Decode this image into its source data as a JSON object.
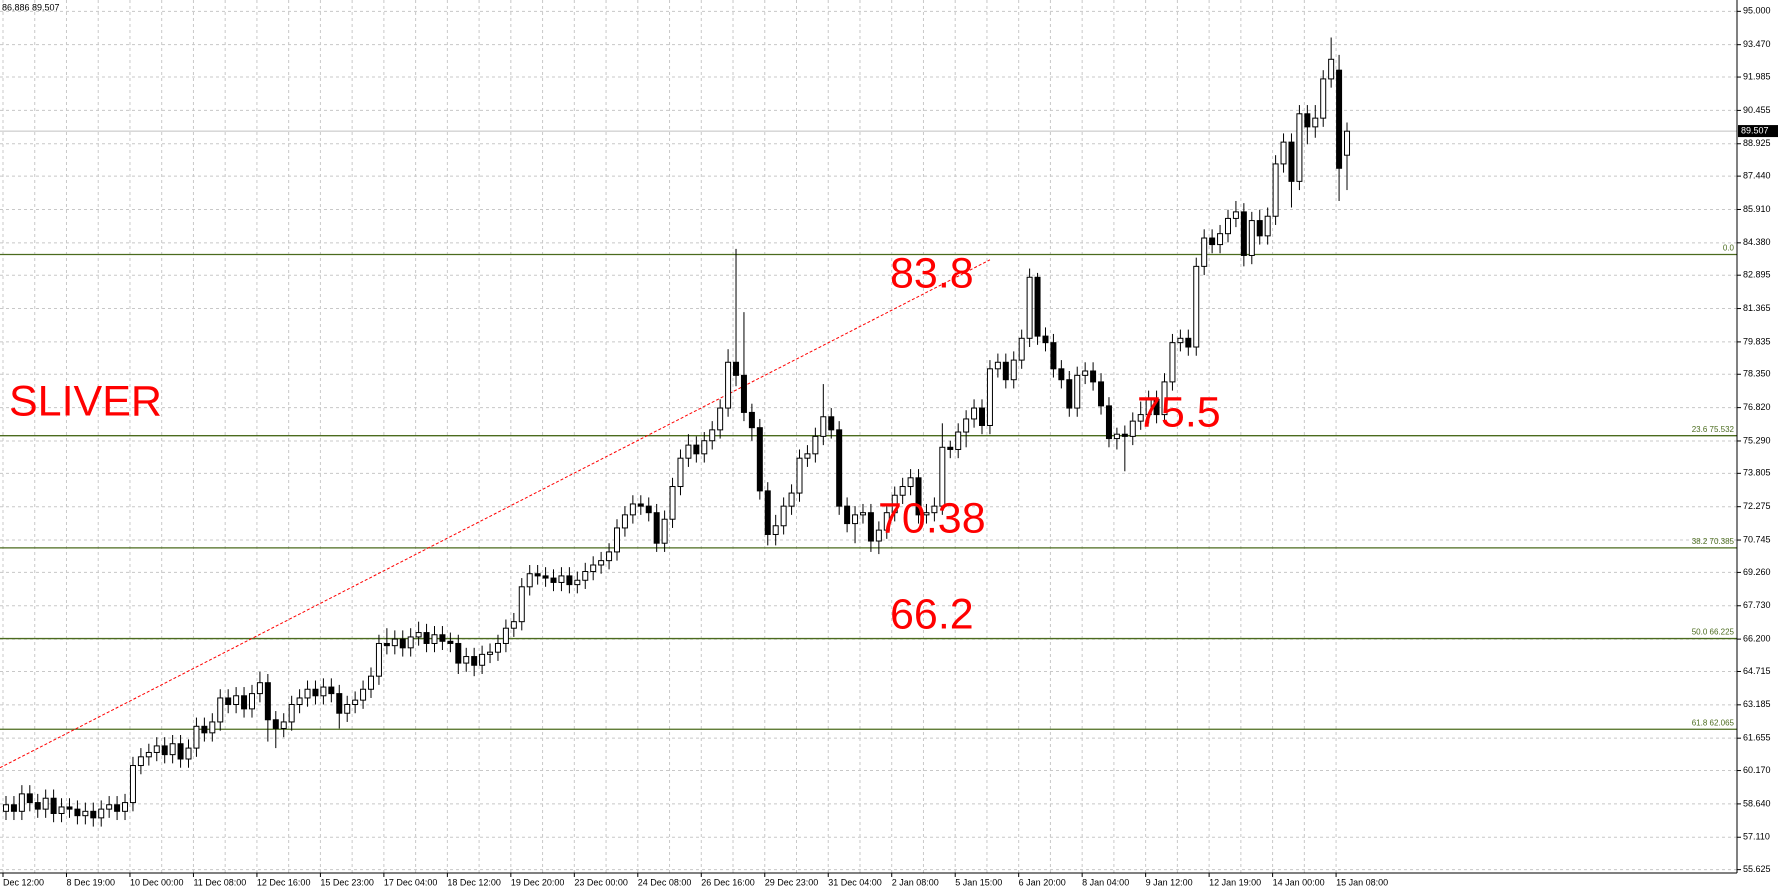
{
  "chart_data": {
    "type": "candlestick",
    "header_text": "86.886 89.507",
    "annotations": [
      "SLIVER",
      "83.8",
      "75.5",
      "70.38",
      "66.2"
    ],
    "categories": [
      "Dec 12:00",
      null,
      null,
      null,
      null,
      null,
      null,
      null,
      "8 Dec 19:00",
      null,
      null,
      null,
      null,
      null,
      null,
      null,
      "10 Dec 00:00",
      null,
      null,
      null,
      null,
      null,
      null,
      null,
      "11 Dec 08:00",
      null,
      null,
      null,
      null,
      null,
      null,
      null,
      "12 Dec 16:00",
      null,
      null,
      null,
      null,
      null,
      null,
      null,
      "15 Dec 23:00",
      null,
      null,
      null,
      null,
      null,
      null,
      null,
      "17 Dec 04:00",
      null,
      null,
      null,
      null,
      null,
      null,
      null,
      "18 Dec 12:00",
      null,
      null,
      null,
      null,
      null,
      null,
      null,
      "19 Dec 20:00",
      null,
      null,
      null,
      null,
      null,
      null,
      null,
      "23 Dec 00:00",
      null,
      null,
      null,
      null,
      null,
      null,
      null,
      "24 Dec 08:00",
      null,
      null,
      null,
      null,
      null,
      null,
      null,
      "26 Dec 16:00",
      null,
      null,
      null,
      null,
      null,
      null,
      null,
      "29 Dec 23:00",
      null,
      null,
      null,
      null,
      null,
      null,
      null,
      "31 Dec 04:00",
      null,
      null,
      null,
      null,
      null,
      null,
      null,
      "2 Jan 08:00",
      null,
      null,
      null,
      null,
      null,
      null,
      null,
      "5 Jan 15:00",
      null,
      null,
      null,
      null,
      null,
      null,
      null,
      "6 Jan 20:00",
      null,
      null,
      null,
      null,
      null,
      null,
      null,
      "8 Jan 04:00",
      null,
      null,
      null,
      null,
      null,
      null,
      null,
      "9 Jan 12:00",
      null,
      null,
      null,
      null,
      null,
      null,
      null,
      "12 Jan 19:00",
      null,
      null,
      null,
      null,
      null,
      null,
      null,
      "14 Jan 00:00",
      null,
      null,
      null,
      null,
      null,
      null,
      null,
      "15 Jan 08:00",
      null
    ],
    "open": [
      58.3,
      58.6,
      58.3,
      59.1,
      58.7,
      58.4,
      58.9,
      58.2,
      58.5,
      58.4,
      58.1,
      58.3,
      58.0,
      58.4,
      58.6,
      58.3,
      58.7,
      60.4,
      60.8,
      61.0,
      61.3,
      60.9,
      61.4,
      60.7,
      61.2,
      62.2,
      61.9,
      62.4,
      63.5,
      63.2,
      63.6,
      63.0,
      63.7,
      64.2,
      62.5,
      62.1,
      62.4,
      63.2,
      63.5,
      63.9,
      63.6,
      64.0,
      63.7,
      62.8,
      63.2,
      63.4,
      63.9,
      64.5,
      66.0,
      65.9,
      66.2,
      65.8,
      66.3,
      66.5,
      66.0,
      66.4,
      66.1,
      66.0,
      65.1,
      65.4,
      65.0,
      65.5,
      65.6,
      66.0,
      66.7,
      67.0,
      68.6,
      69.2,
      69.1,
      69.0,
      68.8,
      69.1,
      68.7,
      68.9,
      69.3,
      69.6,
      69.8,
      70.2,
      71.3,
      71.9,
      72.4,
      72.3,
      72.0,
      70.6,
      71.7,
      73.2,
      74.5,
      75.1,
      74.7,
      75.3,
      75.8,
      76.8,
      78.9,
      78.3,
      76.6,
      75.9,
      73.0,
      71.0,
      71.4,
      72.3,
      72.9,
      74.5,
      74.7,
      75.5,
      76.4,
      75.8,
      72.3,
      71.5,
      71.9,
      72.0,
      70.7,
      71.2,
      72.0,
      72.8,
      73.2,
      73.6,
      71.9,
      72.0,
      72.3,
      75.0,
      74.9,
      75.7,
      76.3,
      76.8,
      76.0,
      78.6,
      78.9,
      78.1,
      79.0,
      80.0,
      82.8,
      80.1,
      79.8,
      78.6,
      78.1,
      76.8,
      78.3,
      78.5,
      78.0,
      76.9,
      75.4,
      75.6,
      75.5,
      76.2,
      76.5,
      77.2,
      76.5,
      78.0,
      79.8,
      80.0,
      79.6,
      83.3,
      84.6,
      84.3,
      84.8,
      85.5,
      85.8,
      83.8,
      85.4,
      84.7,
      85.6,
      88.0,
      89.0,
      87.2,
      90.3,
      89.7,
      90.1,
      91.9,
      92.3,
      88.4
    ],
    "high": [
      59.0,
      59.0,
      59.5,
      59.5,
      59.1,
      59.3,
      59.3,
      58.9,
      58.9,
      58.8,
      58.7,
      58.7,
      58.8,
      59.0,
      59.0,
      59.1,
      60.8,
      61.2,
      61.4,
      61.7,
      61.7,
      61.8,
      61.8,
      61.6,
      62.6,
      62.6,
      62.8,
      63.9,
      63.9,
      64.0,
      64.0,
      64.1,
      64.7,
      64.6,
      62.9,
      62.8,
      63.6,
      63.9,
      64.3,
      64.3,
      64.4,
      64.4,
      64.1,
      63.6,
      63.8,
      64.3,
      64.9,
      66.4,
      66.7,
      66.6,
      66.6,
      66.7,
      67.0,
      66.9,
      66.8,
      66.8,
      66.5,
      66.4,
      65.8,
      65.8,
      65.9,
      66.0,
      66.4,
      67.1,
      67.4,
      69.0,
      69.6,
      69.6,
      69.5,
      69.4,
      69.5,
      69.5,
      69.3,
      69.7,
      70.0,
      70.2,
      70.6,
      71.7,
      72.3,
      72.8,
      72.8,
      72.7,
      72.4,
      72.1,
      73.6,
      74.9,
      75.6,
      75.5,
      75.7,
      76.2,
      77.2,
      79.5,
      84.1,
      81.2,
      77.0,
      76.3,
      73.4,
      71.9,
      72.7,
      73.3,
      74.9,
      75.1,
      75.9,
      77.9,
      76.8,
      76.2,
      72.7,
      72.3,
      72.4,
      72.4,
      71.6,
      72.4,
      73.2,
      73.6,
      74.0,
      74.0,
      72.4,
      72.7,
      76.1,
      75.3,
      76.1,
      76.7,
      77.2,
      77.2,
      79.0,
      79.3,
      79.3,
      79.4,
      80.4,
      83.2,
      83.0,
      80.5,
      80.2,
      79.0,
      78.5,
      78.7,
      78.9,
      78.9,
      78.4,
      77.3,
      75.9,
      76.0,
      76.6,
      77.1,
      77.6,
      77.6,
      78.4,
      80.2,
      80.4,
      80.4,
      83.7,
      85.0,
      85.0,
      85.2,
      85.9,
      86.3,
      86.2,
      85.8,
      85.9,
      86.0,
      88.4,
      89.4,
      89.4,
      90.7,
      90.7,
      90.7,
      92.3,
      93.8,
      93.0,
      89.9
    ],
    "low": [
      57.9,
      57.9,
      57.9,
      58.3,
      58.0,
      58.0,
      57.8,
      57.8,
      58.0,
      57.7,
      57.7,
      57.6,
      57.6,
      58.0,
      57.9,
      57.9,
      58.3,
      60.0,
      60.4,
      60.6,
      60.5,
      60.5,
      60.3,
      60.3,
      60.8,
      61.5,
      61.5,
      62.0,
      62.8,
      62.8,
      62.6,
      62.6,
      63.3,
      61.5,
      61.2,
      61.7,
      62.0,
      62.8,
      63.1,
      63.2,
      63.2,
      63.3,
      62.1,
      62.4,
      62.8,
      63.0,
      63.5,
      64.1,
      65.5,
      65.5,
      65.4,
      65.4,
      65.9,
      65.6,
      65.6,
      65.7,
      65.6,
      64.6,
      64.7,
      64.5,
      64.6,
      65.1,
      65.2,
      65.6,
      66.3,
      66.6,
      68.2,
      68.7,
      68.6,
      68.4,
      68.4,
      68.3,
      68.3,
      68.5,
      68.9,
      69.2,
      69.4,
      69.8,
      70.9,
      71.5,
      71.9,
      71.6,
      70.2,
      70.2,
      71.3,
      72.8,
      74.1,
      74.3,
      74.3,
      74.9,
      75.4,
      76.4,
      77.8,
      76.2,
      75.3,
      72.6,
      70.5,
      70.5,
      71.0,
      71.9,
      72.5,
      74.1,
      74.3,
      75.1,
      75.4,
      71.9,
      71.1,
      70.6,
      71.5,
      70.2,
      70.1,
      70.8,
      71.6,
      72.4,
      72.8,
      71.5,
      71.5,
      71.6,
      71.9,
      74.5,
      74.5,
      75.0,
      75.9,
      75.6,
      75.6,
      78.2,
      77.7,
      77.7,
      78.6,
      79.6,
      79.7,
      79.4,
      78.2,
      77.7,
      76.4,
      76.4,
      77.9,
      77.6,
      76.5,
      75.0,
      74.9,
      73.9,
      75.1,
      75.8,
      76.1,
      76.1,
      76.1,
      77.6,
      79.4,
      79.2,
      79.2,
      82.9,
      83.9,
      83.9,
      84.4,
      85.1,
      83.3,
      83.4,
      84.3,
      84.3,
      85.2,
      87.6,
      86.0,
      86.8,
      88.9,
      89.2,
      89.7,
      91.5,
      86.3,
      86.8
    ],
    "close": [
      58.6,
      58.3,
      59.1,
      58.7,
      58.4,
      58.9,
      58.2,
      58.5,
      58.4,
      58.1,
      58.3,
      58.0,
      58.4,
      58.6,
      58.3,
      58.7,
      60.4,
      60.8,
      61.0,
      61.3,
      60.9,
      61.4,
      60.7,
      61.2,
      62.2,
      61.9,
      62.4,
      63.5,
      63.2,
      63.6,
      63.0,
      63.7,
      64.2,
      62.5,
      62.1,
      62.4,
      63.2,
      63.5,
      63.9,
      63.6,
      64.0,
      63.7,
      62.8,
      63.2,
      63.4,
      63.9,
      64.5,
      66.0,
      65.9,
      66.2,
      65.8,
      66.3,
      66.5,
      66.0,
      66.4,
      66.1,
      66.0,
      65.1,
      65.4,
      65.0,
      65.5,
      65.6,
      66.0,
      66.7,
      67.0,
      68.6,
      69.2,
      69.1,
      69.0,
      68.8,
      69.1,
      68.7,
      68.9,
      69.3,
      69.6,
      69.8,
      70.2,
      71.3,
      71.9,
      72.4,
      72.3,
      72.0,
      70.6,
      71.7,
      73.2,
      74.5,
      75.1,
      74.7,
      75.3,
      75.8,
      76.8,
      78.9,
      78.3,
      76.6,
      75.9,
      73.0,
      71.0,
      71.4,
      72.3,
      72.9,
      74.5,
      74.7,
      75.5,
      76.4,
      75.8,
      72.3,
      71.5,
      71.9,
      72.0,
      70.7,
      71.2,
      72.0,
      72.8,
      73.2,
      73.6,
      71.9,
      72.0,
      72.3,
      75.0,
      74.9,
      75.7,
      76.3,
      76.8,
      76.0,
      78.6,
      78.9,
      78.1,
      79.0,
      80.0,
      82.8,
      80.1,
      79.8,
      78.6,
      78.1,
      76.8,
      78.3,
      78.5,
      78.0,
      76.9,
      75.4,
      75.6,
      75.5,
      76.2,
      76.5,
      77.2,
      76.5,
      78.0,
      79.8,
      80.0,
      79.6,
      83.3,
      84.6,
      84.3,
      84.8,
      85.5,
      85.8,
      83.8,
      85.4,
      84.7,
      85.6,
      88.0,
      89.0,
      87.2,
      90.3,
      89.7,
      90.1,
      91.9,
      92.8,
      87.8,
      89.5
    ],
    "up_color": "#ffffff",
    "down_color": "#000000",
    "ylim": [
      55.47,
      95.52
    ],
    "yticks": [
      {
        "value": 95,
        "label": "95.000"
      },
      {
        "value": 93.47,
        "label": "93.470"
      },
      91.985,
      90.455,
      88.925,
      {
        "value": 87.44,
        "label": "87.440"
      },
      {
        "value": 85.91,
        "label": "85.910"
      },
      {
        "value": 84.38,
        "label": "84.380"
      },
      82.895,
      81.365,
      79.835,
      {
        "value": 78.35,
        "label": "78.350"
      },
      {
        "value": 76.82,
        "label": "76.820"
      },
      {
        "value": 75.29,
        "label": "75.290"
      },
      73.805,
      72.275,
      70.745,
      {
        "value": 69.26,
        "label": "69.260"
      },
      {
        "value": 67.73,
        "label": "67.730"
      },
      {
        "value": 66.2,
        "label": "66.200"
      },
      64.715,
      63.185,
      61.655,
      {
        "value": 60.17,
        "label": "60.170"
      },
      {
        "value": 58.64,
        "label": "58.640"
      },
      {
        "value": 57.11,
        "label": "57.110"
      },
      55.625
    ],
    "grid": true,
    "current_price": 89.507,
    "fib_levels": [
      {
        "value": 83.845,
        "label": "0.0"
      },
      {
        "value": 75.532,
        "label": "23.6 75.532"
      },
      {
        "value": 70.385,
        "label": "38.2 70.385"
      },
      {
        "value": 66.225,
        "label": "50.0 66.225"
      },
      {
        "value": 62.065,
        "label": "61.8 62.065"
      }
    ],
    "fib_color": "#4b6b1e",
    "trendline": {
      "x": [
        0,
        124
      ],
      "y": [
        60.3,
        83.6
      ],
      "color": "#ff0000"
    }
  }
}
